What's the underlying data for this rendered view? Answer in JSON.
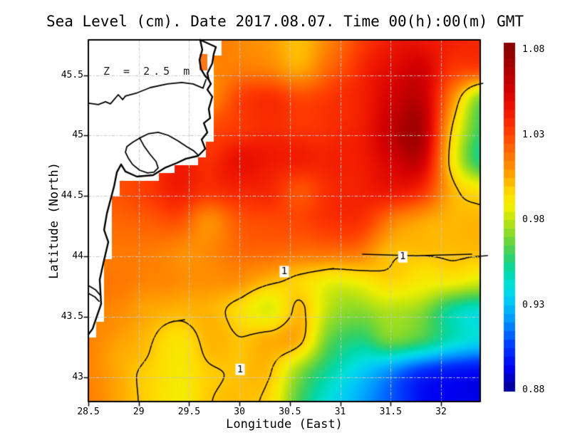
{
  "title": "Sea Level (cm). Date 2017.08.07. Time 00(h):00(m) GMT",
  "annotation": "Z = 2.5 m",
  "axes": {
    "x_label": "Longitude (East)",
    "y_label": "Latitude (North)",
    "x_ticks": [
      "28.5",
      "29",
      "29.5",
      "30",
      "30.5",
      "31",
      "31.5",
      "32"
    ],
    "y_ticks": [
      "43",
      "43.5",
      "44",
      "44.5",
      "45",
      "45.5"
    ]
  },
  "colorbar": {
    "labels": [
      "1.08",
      "1.03",
      "0.98",
      "0.93",
      "0.88"
    ],
    "min": 0.88,
    "max": 1.08,
    "step": 0.005
  },
  "chart_data": {
    "type": "heatmap",
    "title": "Sea Level (cm). Date 2017.08.07. Time 00(h):00(m) GMT",
    "xlabel": "Longitude (East)",
    "ylabel": "Latitude (North)",
    "x_range": [
      28.5,
      32.389
    ],
    "y_range": [
      42.797,
      45.792
    ],
    "lon": [
      28.5,
      28.8,
      29.1,
      29.4,
      29.7,
      30.0,
      30.3,
      30.6,
      30.9,
      31.2,
      31.5,
      31.8,
      32.1,
      32.4
    ],
    "lat": [
      45.8,
      45.55,
      45.3,
      45.05,
      44.8,
      44.55,
      44.3,
      44.05,
      43.8,
      43.55,
      43.3,
      43.05,
      42.8
    ],
    "values": [
      [
        1.015,
        1.015,
        1.015,
        1.015,
        1.018,
        1.013,
        1.008,
        1.0,
        1.014,
        1.03,
        1.042,
        1.046,
        1.04,
        1.038
      ],
      [
        1.012,
        1.012,
        1.012,
        1.014,
        1.013,
        1.016,
        1.014,
        1.006,
        1.022,
        1.038,
        1.05,
        1.056,
        1.035,
        1.03
      ],
      [
        1.01,
        1.01,
        1.012,
        1.013,
        1.014,
        1.03,
        1.036,
        1.03,
        1.035,
        1.04,
        1.056,
        1.062,
        1.015,
        0.97
      ],
      [
        1.01,
        1.012,
        1.015,
        1.02,
        1.028,
        1.033,
        1.038,
        1.035,
        1.038,
        1.042,
        1.06,
        1.068,
        1.0,
        0.96
      ],
      [
        1.02,
        1.024,
        1.03,
        1.042,
        1.036,
        1.048,
        1.044,
        1.042,
        1.042,
        1.042,
        1.055,
        1.06,
        0.995,
        0.955
      ],
      [
        1.028,
        1.027,
        1.032,
        1.042,
        1.035,
        1.04,
        1.038,
        1.027,
        1.038,
        1.04,
        1.045,
        1.038,
        1.005,
        0.992
      ],
      [
        1.02,
        1.022,
        1.025,
        1.028,
        1.012,
        1.026,
        1.03,
        1.03,
        1.036,
        1.036,
        1.018,
        1.008,
        1.002,
        1.002
      ],
      [
        1.015,
        1.016,
        1.015,
        1.012,
        1.013,
        1.02,
        1.022,
        1.02,
        1.02,
        1.018,
        1.002,
        1.001,
        1.002,
        1.003
      ],
      [
        1.018,
        1.018,
        1.014,
        1.012,
        1.012,
        1.012,
        1.002,
        0.998,
        0.988,
        0.99,
        0.996,
        0.992,
        0.99,
        0.986
      ],
      [
        1.014,
        1.012,
        1.006,
        1.003,
        1.004,
        0.996,
        0.985,
        1.002,
        0.978,
        0.972,
        0.978,
        0.972,
        0.95,
        0.942
      ],
      [
        1.013,
        1.008,
        1.0,
        0.992,
        1.002,
        1.001,
        1.005,
        1.002,
        0.965,
        0.955,
        0.968,
        0.96,
        0.945,
        0.938
      ],
      [
        1.012,
        1.005,
        0.998,
        0.99,
        0.999,
        1.001,
        1.001,
        0.972,
        0.952,
        0.935,
        0.92,
        0.905,
        0.898,
        0.895
      ],
      [
        1.015,
        1.006,
        0.998,
        0.988,
        0.999,
        1.002,
        0.995,
        0.962,
        0.94,
        0.925,
        0.91,
        0.897,
        0.893,
        0.891
      ]
    ],
    "contour_level": 1.0,
    "contour_label": "1",
    "contour_label_points": [
      [
        30.444,
        43.873
      ],
      [
        31.62,
        43.995
      ],
      [
        30.006,
        43.063
      ]
    ],
    "colormap": [
      [
        0.88,
        "#00008f"
      ],
      [
        0.893,
        "#0000f0"
      ],
      [
        0.906,
        "#0038ff"
      ],
      [
        0.92,
        "#0090ff"
      ],
      [
        0.932,
        "#00c8f8"
      ],
      [
        0.941,
        "#00e0dc"
      ],
      [
        0.95,
        "#00d8a8"
      ],
      [
        0.96,
        "#38d060"
      ],
      [
        0.97,
        "#7cd830"
      ],
      [
        0.98,
        "#c0e410"
      ],
      [
        0.988,
        "#f0f000"
      ],
      [
        0.996,
        "#ffdc00"
      ],
      [
        1.002,
        "#ffbc00"
      ],
      [
        1.01,
        "#ff9400"
      ],
      [
        1.02,
        "#ff6c00"
      ],
      [
        1.032,
        "#ff3c00"
      ],
      [
        1.044,
        "#f01800"
      ],
      [
        1.056,
        "#d40000"
      ],
      [
        1.068,
        "#ac0000"
      ],
      [
        1.08,
        "#8b0000"
      ]
    ],
    "coastline": [
      [
        29.61,
        45.792
      ],
      [
        29.766,
        45.733
      ],
      [
        29.744,
        45.675
      ],
      [
        29.73,
        45.598
      ],
      [
        29.681,
        45.515
      ],
      [
        29.695,
        45.462
      ],
      [
        29.716,
        45.427
      ],
      [
        29.681,
        45.38
      ],
      [
        29.73,
        45.321
      ],
      [
        29.695,
        45.22
      ],
      [
        29.709,
        45.144
      ],
      [
        29.646,
        45.103
      ],
      [
        29.681,
        45.026
      ],
      [
        29.624,
        44.967
      ],
      [
        29.66,
        44.89
      ],
      [
        29.589,
        44.831
      ],
      [
        29.469,
        44.808
      ],
      [
        29.377,
        44.772
      ],
      [
        29.257,
        44.731
      ],
      [
        29.143,
        44.672
      ],
      [
        28.981,
        44.66
      ],
      [
        28.868,
        44.702
      ],
      [
        28.825,
        44.761
      ],
      [
        28.783,
        44.696
      ],
      [
        28.755,
        44.578
      ],
      [
        28.684,
        44.354
      ],
      [
        28.656,
        44.218
      ],
      [
        28.698,
        44.118
      ],
      [
        28.648,
        43.941
      ],
      [
        28.613,
        43.806
      ],
      [
        28.627,
        43.605
      ],
      [
        28.578,
        43.487
      ],
      [
        28.542,
        43.399
      ],
      [
        28.5,
        43.352
      ]
    ],
    "delta_west_line": [
      [
        29.61,
        45.792
      ],
      [
        29.631,
        45.71
      ],
      [
        29.603,
        45.627
      ],
      [
        29.617,
        45.551
      ],
      [
        29.66,
        45.492
      ],
      [
        29.695,
        45.462
      ]
    ],
    "inland_water_lines": [
      [
        [
          28.5,
          45.268
        ],
        [
          28.599,
          45.256
        ],
        [
          28.67,
          45.28
        ],
        [
          28.719,
          45.262
        ],
        [
          28.755,
          45.297
        ],
        [
          28.797,
          45.338
        ],
        [
          28.84,
          45.297
        ],
        [
          28.868,
          45.327
        ],
        [
          28.974,
          45.35
        ],
        [
          29.115,
          45.397
        ],
        [
          29.285,
          45.427
        ],
        [
          29.426,
          45.439
        ],
        [
          29.539,
          45.427
        ],
        [
          29.638,
          45.392
        ],
        [
          29.667,
          45.462
        ]
      ],
      [
        [
          29.009,
          44.979
        ],
        [
          28.938,
          44.943
        ],
        [
          28.882,
          44.908
        ],
        [
          28.868,
          44.861
        ],
        [
          28.896,
          44.814
        ],
        [
          28.938,
          44.761
        ],
        [
          29.009,
          44.713
        ],
        [
          29.087,
          44.69
        ],
        [
          29.15,
          44.696
        ],
        [
          29.193,
          44.731
        ],
        [
          29.172,
          44.784
        ],
        [
          29.108,
          44.849
        ],
        [
          29.052,
          44.914
        ],
        [
          29.009,
          44.979
        ]
      ],
      [
        [
          29.009,
          44.979
        ],
        [
          29.094,
          45.014
        ],
        [
          29.193,
          45.026
        ],
        [
          29.292,
          45.002
        ],
        [
          29.391,
          44.955
        ],
        [
          29.476,
          44.908
        ],
        [
          29.546,
          44.873
        ],
        [
          29.589,
          44.837
        ]
      ],
      [
        [
          28.5,
          43.758
        ],
        [
          28.571,
          43.723
        ],
        [
          28.62,
          43.676
        ]
      ],
      [
        [
          28.5,
          43.693
        ],
        [
          28.564,
          43.664
        ],
        [
          28.606,
          43.628
        ]
      ]
    ],
    "river_mouth_cell": {
      "lon0": 29.603,
      "lat0": 45.675,
      "lon1": 29.681,
      "lat1": 45.539,
      "color": "#ff7818"
    }
  }
}
